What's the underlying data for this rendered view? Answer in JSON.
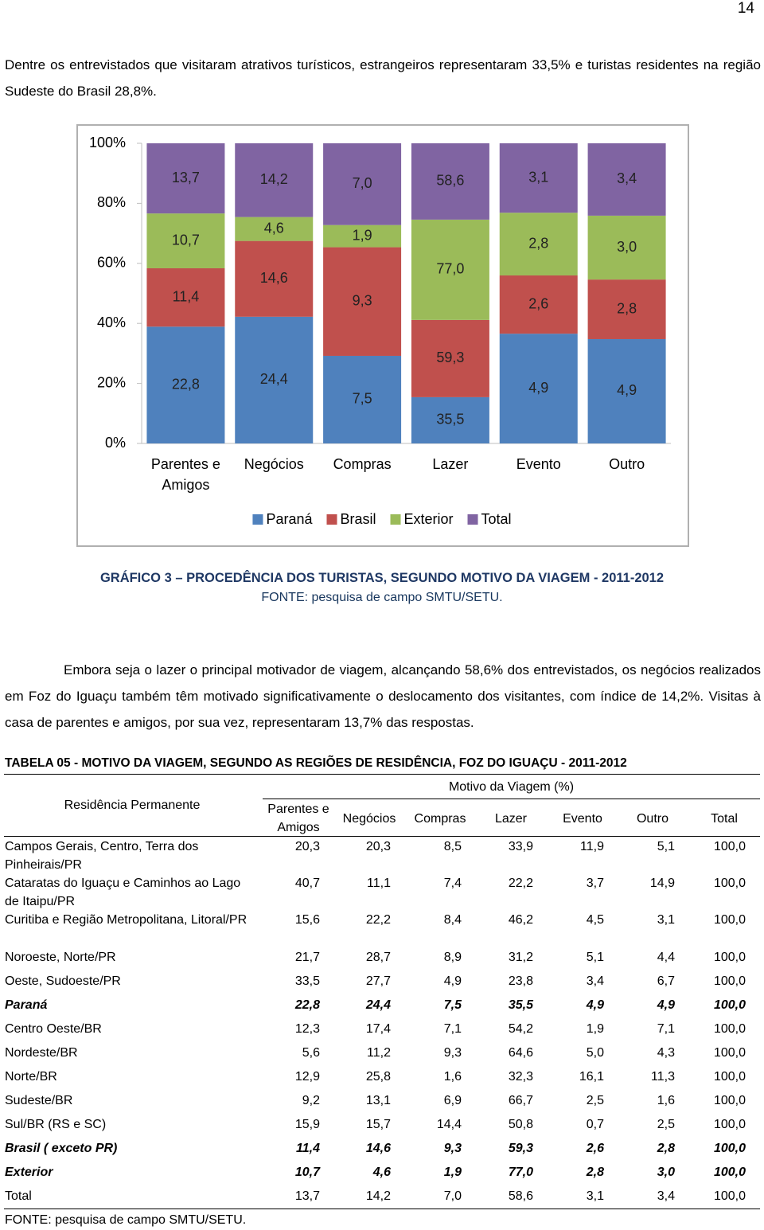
{
  "page_number": "14",
  "paragraph_1": "Dentre os entrevistados que visitaram atrativos turísticos, estrangeiros representaram 33,5% e turistas residentes na região Sudeste do Brasil 28,8%.",
  "chart_data": {
    "type": "bar",
    "stacking": "percent",
    "categories": [
      "Parentes e Amigos",
      "Negócios",
      "Compras",
      "Lazer",
      "Evento",
      "Outro"
    ],
    "series": [
      {
        "name": "Paraná",
        "color": "#4f81bd",
        "values": [
          22.8,
          24.4,
          7.5,
          35.5,
          4.9,
          4.9
        ],
        "value_labels": [
          "22,8",
          "24,4",
          "7,5",
          "35,5",
          "4,9",
          "4,9"
        ]
      },
      {
        "name": "Brasil",
        "color": "#c0504d",
        "values": [
          11.4,
          14.6,
          9.3,
          59.3,
          2.6,
          2.8
        ],
        "value_labels": [
          "11,4",
          "14,6",
          "9,3",
          "59,3",
          "2,6",
          "2,8"
        ]
      },
      {
        "name": "Exterior",
        "color": "#9bbb59",
        "values": [
          10.7,
          4.6,
          1.9,
          77.0,
          2.8,
          3.0
        ],
        "value_labels": [
          "10,7",
          "4,6",
          "1,9",
          "77,0",
          "2,8",
          "3,0"
        ]
      },
      {
        "name": "Total",
        "color": "#8064a2",
        "values": [
          13.7,
          14.2,
          7.0,
          58.6,
          3.1,
          3.4
        ],
        "value_labels": [
          "13,7",
          "14,2",
          "7,0",
          "58,6",
          "3,1",
          "3,4"
        ]
      }
    ],
    "ylim": [
      0,
      100
    ],
    "yticks": [
      {
        "value": 0,
        "label": "0%"
      },
      {
        "value": 20,
        "label": "20%"
      },
      {
        "value": 40,
        "label": "40%"
      },
      {
        "value": 60,
        "label": "60%"
      },
      {
        "value": 80,
        "label": "80%"
      },
      {
        "value": 100,
        "label": "100%"
      }
    ],
    "legend": "bottom",
    "grid": false
  },
  "caption": {
    "title": "GRÁFICO 3 – PROCEDÊNCIA DOS TURISTAS, SEGUNDO MOTIVO DA VIAGEM - 2011-2012",
    "source": "FONTE: pesquisa de campo SMTU/SETU."
  },
  "paragraph_2": "Embora seja o lazer o principal motivador de viagem, alcançando 58,6% dos entrevistados, os negócios realizados em Foz do Iguaçu também têm motivado significativamente o deslocamento dos visitantes, com índice de 14,2%. Visitas à casa de parentes e amigos, por sua vez, representaram 13,7% das respostas.",
  "table": {
    "title": "TABELA 05 - MOTIVO DA VIAGEM, SEGUNDO AS REGIÕES DE RESIDÊNCIA, FOZ DO IGUAÇU - 2011-2012",
    "row_header": "Residência Permanente",
    "group_header": "Motivo da Viagem (%)",
    "columns": [
      "Parentes e Amigos",
      "Negócios",
      "Compras",
      "Lazer",
      "Evento",
      "Outro",
      "Total"
    ],
    "rows": [
      {
        "label": "Campos Gerais, Centro, Terra dos Pinheirais/PR",
        "cells": [
          "20,3",
          "20,3",
          "8,5",
          "33,9",
          "11,9",
          "5,1",
          "100,0"
        ]
      },
      {
        "label": "Cataratas do Iguaçu e Caminhos ao Lago de Itaipu/PR",
        "cells": [
          "40,7",
          "11,1",
          "7,4",
          "22,2",
          "3,7",
          "14,9",
          "100,0"
        ]
      },
      {
        "label": "Curitiba e Região Metropolitana, Litoral/PR",
        "cells": [
          "15,6",
          "22,2",
          "8,4",
          "46,2",
          "4,5",
          "3,1",
          "100,0"
        ]
      },
      {
        "label": "Noroeste, Norte/PR",
        "cells": [
          "21,7",
          "28,7",
          "8,9",
          "31,2",
          "5,1",
          "4,4",
          "100,0"
        ]
      },
      {
        "label": "Oeste, Sudoeste/PR",
        "cells": [
          "33,5",
          "27,7",
          "4,9",
          "23,8",
          "3,4",
          "6,7",
          "100,0"
        ]
      },
      {
        "label": "Paraná",
        "cells": [
          "22,8",
          "24,4",
          "7,5",
          "35,5",
          "4,9",
          "4,9",
          "100,0"
        ],
        "emphasis": true
      },
      {
        "label": "Centro Oeste/BR",
        "cells": [
          "12,3",
          "17,4",
          "7,1",
          "54,2",
          "1,9",
          "7,1",
          "100,0"
        ]
      },
      {
        "label": "Nordeste/BR",
        "cells": [
          "5,6",
          "11,2",
          "9,3",
          "64,6",
          "5,0",
          "4,3",
          "100,0"
        ]
      },
      {
        "label": "Norte/BR",
        "cells": [
          "12,9",
          "25,8",
          "1,6",
          "32,3",
          "16,1",
          "11,3",
          "100,0"
        ]
      },
      {
        "label": "Sudeste/BR",
        "cells": [
          "9,2",
          "13,1",
          "6,9",
          "66,7",
          "2,5",
          "1,6",
          "100,0"
        ]
      },
      {
        "label": "Sul/BR (RS e SC)",
        "cells": [
          "15,9",
          "15,7",
          "14,4",
          "50,8",
          "0,7",
          "2,5",
          "100,0"
        ]
      },
      {
        "label": "Brasil ( exceto PR)",
        "cells": [
          "11,4",
          "14,6",
          "9,3",
          "59,3",
          "2,6",
          "2,8",
          "100,0"
        ],
        "emphasis": true
      },
      {
        "label": "Exterior",
        "cells": [
          "10,7",
          "4,6",
          "1,9",
          "77,0",
          "2,8",
          "3,0",
          "100,0"
        ],
        "emphasis": true
      },
      {
        "label": "Total",
        "cells": [
          "13,7",
          "14,2",
          "7,0",
          "58,6",
          "3,1",
          "3,4",
          "100,0"
        ]
      }
    ],
    "source": "FONTE: pesquisa de campo SMTU/SETU."
  }
}
